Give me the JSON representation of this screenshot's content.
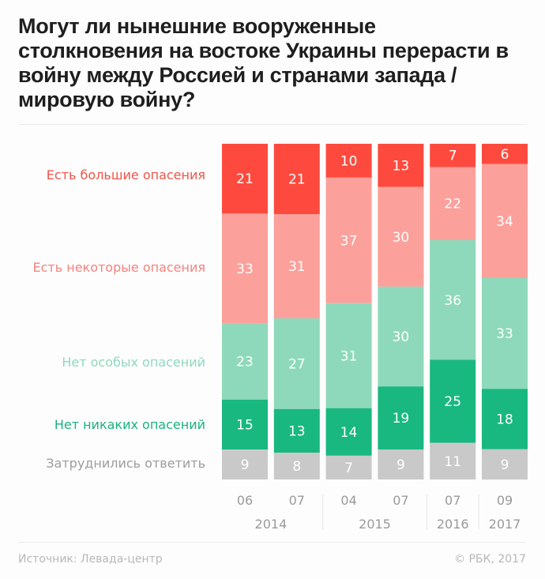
{
  "chart_data": {
    "type": "bar",
    "stacked": true,
    "title": "Могут ли нынешние вооруженные столкновения на востоке Украины перерасти в войну между Россией и странами запада / мировую войну?",
    "categories": [
      {
        "month": "06",
        "year": "2014"
      },
      {
        "month": "07",
        "year": "2014"
      },
      {
        "month": "04",
        "year": "2015"
      },
      {
        "month": "07",
        "year": "2015"
      },
      {
        "month": "07",
        "year": "2016"
      },
      {
        "month": "09",
        "year": "2017"
      }
    ],
    "year_groups": [
      {
        "year": "2014",
        "count": 2
      },
      {
        "year": "2015",
        "count": 2
      },
      {
        "year": "2016",
        "count": 1
      },
      {
        "year": "2017",
        "count": 1
      }
    ],
    "series": [
      {
        "name": "Есть большие опасения",
        "color": "#fe4a3e",
        "label_color": "#f0544a",
        "values": [
          21,
          21,
          10,
          13,
          7,
          6
        ]
      },
      {
        "name": "Есть некоторые опасения",
        "color": "#fca09b",
        "label_color": "#f3837e",
        "values": [
          33,
          31,
          37,
          30,
          22,
          34
        ]
      },
      {
        "name": "Нет особых опасений",
        "color": "#8ed9bb",
        "label_color": "#8ed9bb",
        "values": [
          23,
          27,
          31,
          30,
          36,
          33
        ]
      },
      {
        "name": "Нет никаких опасений",
        "color": "#19b880",
        "label_color": "#19b27c",
        "values": [
          15,
          13,
          14,
          19,
          25,
          18
        ]
      },
      {
        "name": "Затруднились ответить",
        "color": "#c9c9c9",
        "label_color": "#9d9d9d",
        "values": [
          9,
          8,
          7,
          9,
          11,
          9
        ]
      }
    ],
    "ylim": [
      0,
      100
    ],
    "unit": "%",
    "grid": false,
    "legend_placement": "left"
  },
  "footer": {
    "source": "Источник: Левада-центр",
    "copyright": "© РБК, 2017"
  }
}
